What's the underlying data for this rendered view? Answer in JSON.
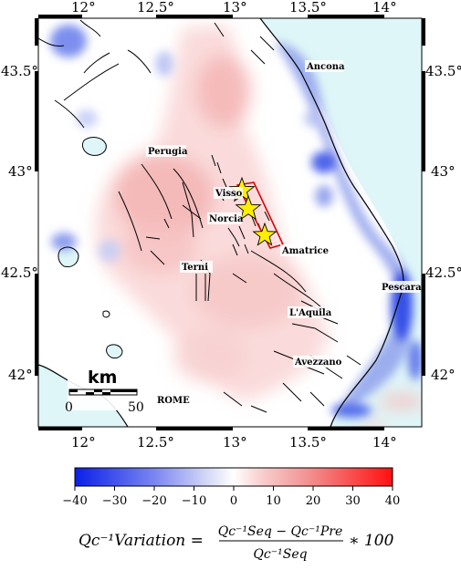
{
  "map": {
    "lon_ticks_top": [
      "12°",
      "12.5°",
      "13°",
      "13.5°",
      "14°"
    ],
    "lon_ticks_bottom": [
      "12°",
      "12.5°",
      "13°",
      "13.5°",
      "14°"
    ],
    "lat_ticks_left": [
      "43.5°",
      "43°",
      "42.5°",
      "42°"
    ],
    "lat_ticks_right": [
      "43.5°",
      "43°",
      "42.5°",
      "42°"
    ],
    "cities": {
      "ancona": "Ancona",
      "perugia": "Perugia",
      "visso": "Visso",
      "norcia": "Norcia",
      "amatrice": "Amatrice",
      "terni": "Terni",
      "pescara": "Pescara",
      "laquila": "L'Aquila",
      "avezzano": "Avezzano",
      "rome": "ROME"
    },
    "scale_bar": {
      "unit": "km",
      "min_label": "0",
      "max_label": "50"
    },
    "epicenters_count": 3,
    "colors": {
      "sea": "#dff6f8",
      "negative": "#1a2cf0",
      "positive": "#ff2020",
      "faults": "#000000",
      "epicenter_star": "#ffee00",
      "sequence_box": "#e00000"
    }
  },
  "colorbar": {
    "ticks": [
      "−40",
      "−30",
      "−20",
      "−10",
      "0",
      "10",
      "20",
      "30",
      "40"
    ],
    "min": -40,
    "max": 40
  },
  "formula": {
    "lhs": "Qc⁻¹Variation =",
    "numerator": "Qc⁻¹Seq − Qc⁻¹Pre",
    "denominator": "Qc⁻¹Seq",
    "suffix": "∗ 100"
  }
}
